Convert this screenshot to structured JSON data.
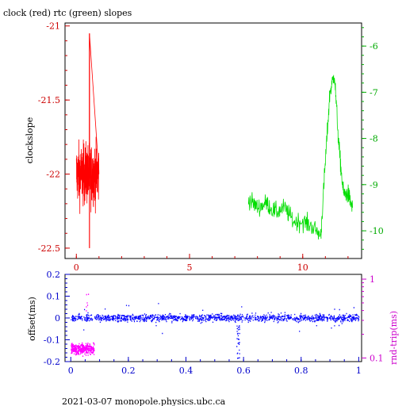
{
  "title": "clock (red) rtc (green) slopes",
  "footer": "2021-03-07 monopole.physics.ubc.ca",
  "colors": {
    "clock": "#ff0000",
    "rtc": "#00dd00",
    "offset": "#0000ff",
    "rndtrip": "#ff00ff",
    "axis_red": "#cc0000",
    "axis_green": "#00aa00",
    "axis_blue": "#0000cc",
    "axis_magenta": "#cc00cc"
  },
  "chart_data": [
    {
      "type": "line",
      "ylabel": "clockslope",
      "xlim": [
        -0.5,
        12.6
      ],
      "ylim": [
        -22.57,
        -20.98
      ],
      "x_ticks": [
        0,
        5,
        10
      ],
      "y_ticks": [
        -21,
        -21.5,
        -22,
        -22.5
      ],
      "y_tick_labels": [
        "-21",
        "-21.5",
        "-22",
        "-22.5"
      ],
      "y2lim": [
        -10.6,
        -5.5
      ],
      "y2_ticks": [
        -6,
        -7,
        -8,
        -9,
        -10
      ],
      "y2_tick_labels": [
        "-6",
        "-7",
        "-8",
        "-9",
        "-10"
      ],
      "series": [
        {
          "name": "clock",
          "axis": "left",
          "x_range": [
            0.0,
            1.0
          ],
          "center": -22.0,
          "spread": 0.22,
          "spike": {
            "x": 0.58,
            "min": -22.5,
            "max": -21.05
          }
        },
        {
          "name": "rtc",
          "axis": "right",
          "x": [
            7.6,
            8.0,
            8.4,
            8.8,
            9.2,
            9.6,
            10.0,
            10.4,
            10.8,
            11.0,
            11.2,
            11.4,
            11.6,
            11.8,
            12.0,
            12.2
          ],
          "y": [
            -9.3,
            -9.5,
            -9.4,
            -9.6,
            -9.5,
            -9.8,
            -9.8,
            -9.9,
            -10.1,
            -8.5,
            -7.0,
            -6.6,
            -8.2,
            -9.2,
            -9.2,
            -9.5
          ]
        }
      ]
    },
    {
      "type": "scatter",
      "ylabel": "offset(ms)",
      "y2label": "rnd-trip(ms)",
      "xlim": [
        -0.02,
        1.01
      ],
      "ylim": [
        -0.2,
        0.2
      ],
      "x_ticks": [
        0,
        0.2,
        0.4,
        0.6,
        0.8,
        1
      ],
      "x_tick_labels": [
        "0",
        "0.2",
        "0.4",
        "0.6",
        "0.8",
        "1"
      ],
      "y_ticks": [
        0.2,
        0.1,
        0,
        -0.1,
        -0.2
      ],
      "y_tick_labels": [
        "0.2",
        "0.1",
        "0",
        "-0.1",
        "-0.2"
      ],
      "y2_scale": "log",
      "y2lim": [
        0.09,
        1.15
      ],
      "y2_ticks": [
        1,
        0.1
      ],
      "y2_tick_labels": [
        "1",
        "0.1"
      ],
      "series": [
        {
          "name": "offset",
          "x_range": [
            0,
            1
          ],
          "center": 0.0,
          "spread": 0.02,
          "dip": {
            "x": 0.58,
            "min": -0.19
          }
        },
        {
          "name": "rnd-trip",
          "x_range": [
            0,
            0.08
          ],
          "center": 0.13,
          "spread": 0.012
        }
      ]
    }
  ]
}
